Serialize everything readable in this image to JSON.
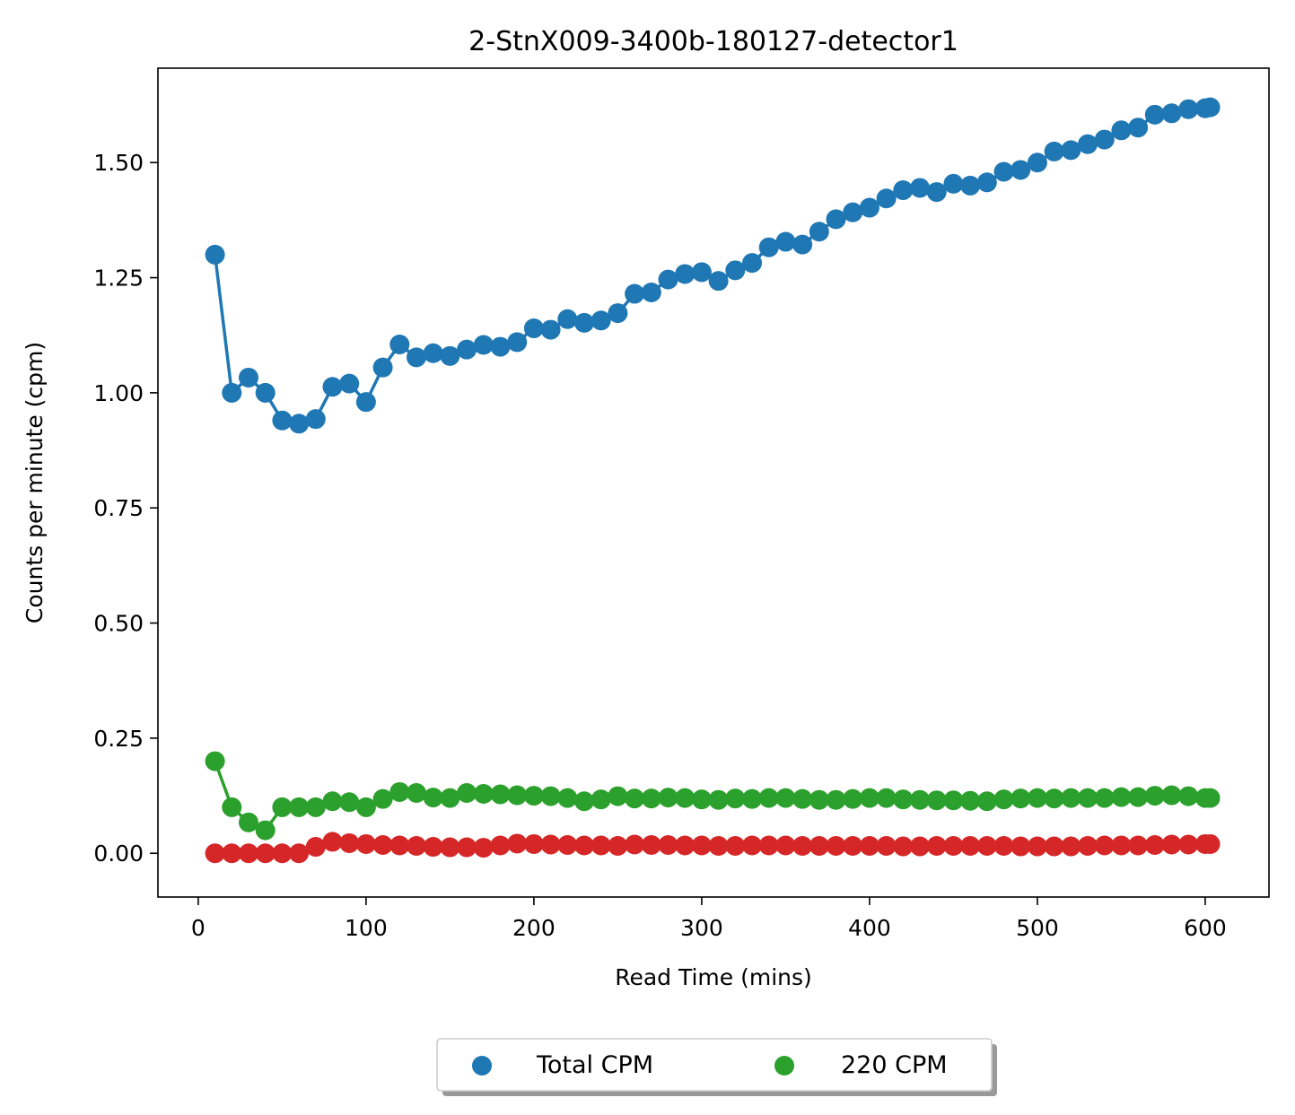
{
  "chart_data": {
    "type": "line",
    "title": "2-StnX009-3400b-180127-detector1",
    "xlabel": "Read Time (mins)",
    "ylabel": "Counts per minute (cpm)",
    "xlim": [
      -24,
      638
    ],
    "ylim": [
      -0.095,
      1.705
    ],
    "xticks": [
      0,
      100,
      200,
      300,
      400,
      500,
      600
    ],
    "xtick_labels": [
      "0",
      "100",
      "200",
      "300",
      "400",
      "500",
      "600"
    ],
    "yticks": [
      0.0,
      0.25,
      0.5,
      0.75,
      1.0,
      1.25,
      1.5
    ],
    "ytick_labels": [
      "0.00",
      "0.25",
      "0.50",
      "0.75",
      "1.00",
      "1.25",
      "1.50"
    ],
    "grid": false,
    "legend": {
      "placement": "below-center",
      "columns": 2,
      "shadow": true
    },
    "x": [
      10,
      20,
      30,
      40,
      50,
      60,
      70,
      80,
      90,
      100,
      110,
      120,
      130,
      140,
      150,
      160,
      170,
      180,
      190,
      200,
      210,
      220,
      230,
      240,
      250,
      260,
      270,
      280,
      290,
      300,
      310,
      320,
      330,
      340,
      350,
      360,
      370,
      380,
      390,
      400,
      410,
      420,
      430,
      440,
      450,
      460,
      470,
      480,
      490,
      500,
      510,
      520,
      530,
      540,
      550,
      560,
      570,
      580,
      590,
      600,
      603
    ],
    "series": [
      {
        "name": "Total CPM",
        "color": "#1f77b4",
        "show_in_legend": true,
        "values": [
          1.3,
          1.0,
          1.033,
          1.0,
          0.94,
          0.933,
          0.943,
          1.013,
          1.02,
          0.98,
          1.055,
          1.105,
          1.077,
          1.086,
          1.08,
          1.094,
          1.104,
          1.1,
          1.11,
          1.14,
          1.137,
          1.16,
          1.152,
          1.157,
          1.173,
          1.215,
          1.218,
          1.246,
          1.258,
          1.262,
          1.243,
          1.266,
          1.282,
          1.316,
          1.328,
          1.322,
          1.35,
          1.377,
          1.392,
          1.402,
          1.422,
          1.44,
          1.445,
          1.436,
          1.454,
          1.45,
          1.457,
          1.48,
          1.484,
          1.5,
          1.524,
          1.527,
          1.54,
          1.55,
          1.57,
          1.576,
          1.604,
          1.607,
          1.616,
          1.618,
          1.62
        ]
      },
      {
        "name": "220 CPM",
        "color": "#2ca02c",
        "show_in_legend": true,
        "values": [
          0.2,
          0.1,
          0.067,
          0.05,
          0.1,
          0.1,
          0.1,
          0.113,
          0.111,
          0.1,
          0.118,
          0.133,
          0.131,
          0.121,
          0.12,
          0.131,
          0.129,
          0.128,
          0.126,
          0.125,
          0.124,
          0.12,
          0.113,
          0.117,
          0.124,
          0.119,
          0.119,
          0.121,
          0.12,
          0.117,
          0.116,
          0.119,
          0.118,
          0.12,
          0.12,
          0.118,
          0.116,
          0.116,
          0.118,
          0.12,
          0.12,
          0.117,
          0.116,
          0.115,
          0.115,
          0.114,
          0.113,
          0.117,
          0.119,
          0.12,
          0.119,
          0.12,
          0.12,
          0.12,
          0.122,
          0.122,
          0.125,
          0.126,
          0.124,
          0.12,
          0.12
        ]
      },
      {
        "name": "",
        "color": "#d62728",
        "show_in_legend": false,
        "values": [
          0.0,
          0.0,
          0.0,
          0.0,
          0.0,
          0.0,
          0.014,
          0.025,
          0.022,
          0.02,
          0.018,
          0.017,
          0.016,
          0.014,
          0.013,
          0.013,
          0.012,
          0.017,
          0.021,
          0.02,
          0.019,
          0.018,
          0.017,
          0.017,
          0.016,
          0.019,
          0.018,
          0.018,
          0.017,
          0.017,
          0.016,
          0.016,
          0.017,
          0.017,
          0.017,
          0.016,
          0.016,
          0.016,
          0.016,
          0.016,
          0.016,
          0.015,
          0.015,
          0.016,
          0.016,
          0.016,
          0.016,
          0.016,
          0.015,
          0.015,
          0.015,
          0.015,
          0.016,
          0.017,
          0.017,
          0.017,
          0.018,
          0.019,
          0.019,
          0.02,
          0.02
        ]
      }
    ]
  }
}
